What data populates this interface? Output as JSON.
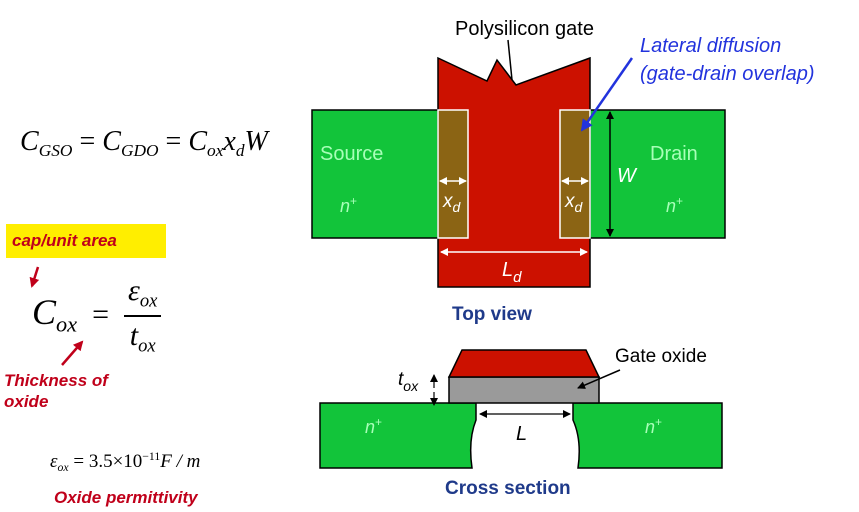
{
  "equations": {
    "cgso": {
      "lhs1": "C",
      "lhs1_sub": "GSO",
      "eq1": "=",
      "lhs2": "C",
      "lhs2_sub": "GDO",
      "eq2": "=",
      "rhs_c": "C",
      "rhs_c_sub": "ox",
      "rhs_x": "x",
      "rhs_x_sub": "d",
      "rhs_w": "W"
    },
    "cox": {
      "c": "C",
      "c_sub": "ox",
      "eq": "=",
      "num": "ε",
      "num_sub": "ox",
      "den": "t",
      "den_sub": "ox"
    },
    "eps": {
      "sym": "ε",
      "sym_sub": "ox",
      "eq": "=",
      "mantissa": "3.5",
      "times": "×",
      "base": "10",
      "exp": "−11",
      "unit": "F / m"
    }
  },
  "labels": {
    "cap_unit_area": "cap/unit area",
    "thickness_of_oxide": "Thickness of oxide",
    "oxide_permittivity": "Oxide permittivity"
  },
  "top_view": {
    "polysilicon_gate": "Polysilicon gate",
    "lateral_diffusion_line1": "Lateral diffusion",
    "lateral_diffusion_line2": "(gate-drain overlap)",
    "source": "Source",
    "drain": "Drain",
    "n_plus": "n",
    "plus": "+",
    "x": "x",
    "d": "d",
    "W": "W",
    "L": "L",
    "caption": "Top view"
  },
  "cross_section": {
    "gate_oxide": "Gate oxide",
    "t": "t",
    "ox": "ox",
    "L": "L",
    "n_plus": "n",
    "plus": "+",
    "caption": "Cross section"
  },
  "colors": {
    "green": "#12c43a",
    "gate_red": "#cc1100",
    "overlap_brown": "#8b6414",
    "oxide_gray": "#9a9a9a",
    "cap_highlight": "#ffee00",
    "label_red": "#c0001a",
    "caption_blue": "#1f3a8a",
    "arrow_blue": "#2233dd"
  }
}
